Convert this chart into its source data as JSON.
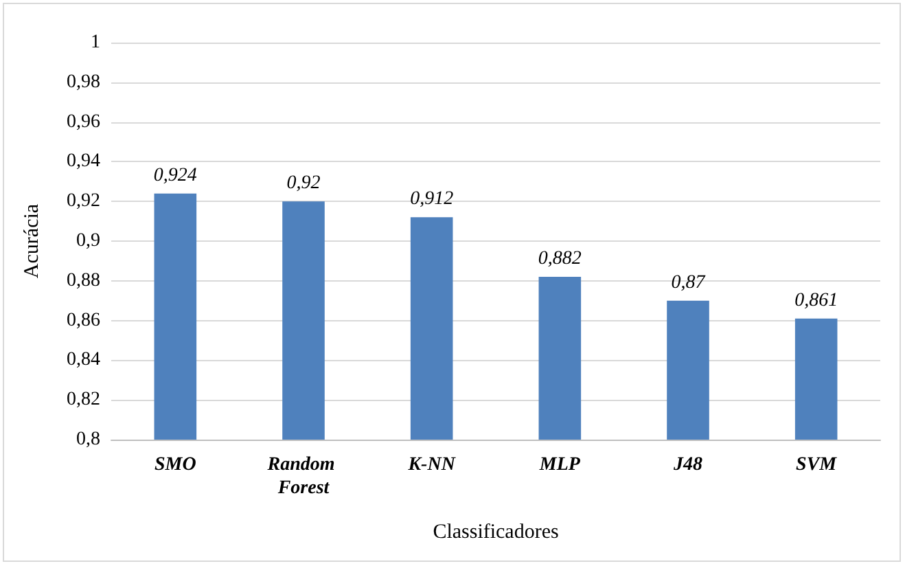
{
  "chart_data": {
    "type": "bar",
    "xlabel": "Classificadores",
    "ylabel": "Acurácia",
    "categories": [
      "SMO",
      "Random Forest",
      "K-NN",
      "MLP",
      "J48",
      "SVM"
    ],
    "values": [
      0.924,
      0.92,
      0.912,
      0.882,
      0.87,
      0.861
    ],
    "value_labels": [
      "0,924",
      "0,92",
      "0,912",
      "0,882",
      "0,87",
      "0,861"
    ],
    "color": "#4f81bd",
    "ylim": [
      0.8,
      1
    ],
    "yticks": [
      {
        "value": 0.8,
        "label": "0,8"
      },
      {
        "value": 0.82,
        "label": "0,82"
      },
      {
        "value": 0.84,
        "label": "0,84"
      },
      {
        "value": 0.86,
        "label": "0,86"
      },
      {
        "value": 0.88,
        "label": "0,88"
      },
      {
        "value": 0.9,
        "label": "0,9"
      },
      {
        "value": 0.92,
        "label": "0,92"
      },
      {
        "value": 0.94,
        "label": "0,94"
      },
      {
        "value": 0.96,
        "label": "0,96"
      },
      {
        "value": 0.98,
        "label": "0,98"
      },
      {
        "value": 1,
        "label": "1"
      }
    ],
    "grid": "y"
  }
}
